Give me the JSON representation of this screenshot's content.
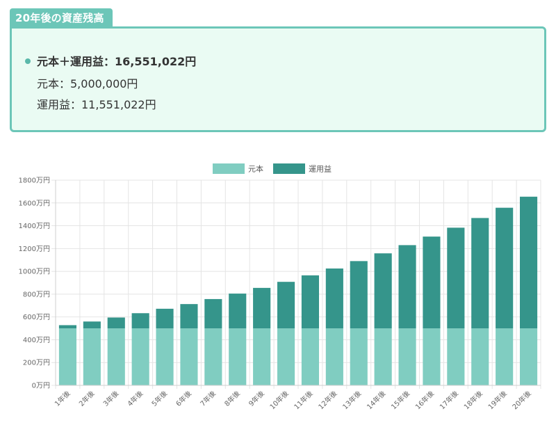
{
  "summary": {
    "title": "20年後の資産残高",
    "total": "元本＋運用益：16,551,022円",
    "principal": "元本：5,000,000円",
    "gain": "運用益：11,551,022円"
  },
  "colors": {
    "principal": "#80cdc1",
    "gain": "#35958b",
    "panel_border": "#6cc6b8",
    "panel_bg": "#eafbf3"
  },
  "chart_data": {
    "type": "bar",
    "stacked": true,
    "categories": [
      "1年後",
      "2年後",
      "3年後",
      "4年後",
      "5年後",
      "6年後",
      "7年後",
      "8年後",
      "9年後",
      "10年後",
      "11年後",
      "12年後",
      "13年後",
      "14年後",
      "15年後",
      "16年後",
      "17年後",
      "18年後",
      "19年後",
      "20年後"
    ],
    "series": [
      {
        "name": "元本",
        "values": [
          500,
          500,
          500,
          500,
          500,
          500,
          500,
          500,
          500,
          500,
          500,
          500,
          500,
          500,
          500,
          500,
          500,
          500,
          500,
          500
        ]
      },
      {
        "name": "運用益",
        "values": [
          28,
          60,
          95,
          133,
          172,
          213,
          257,
          305,
          355,
          408,
          465,
          525,
          590,
          658,
          730,
          805,
          883,
          968,
          1058,
          1155
        ]
      }
    ],
    "ylim": [
      0,
      1800
    ],
    "yticks": [
      "0万円",
      "200万円",
      "400万円",
      "600万円",
      "800万円",
      "1000万円",
      "1200万円",
      "1400万円",
      "1600万円",
      "1800万円"
    ],
    "ytick_values": [
      0,
      200,
      400,
      600,
      800,
      1000,
      1200,
      1400,
      1600,
      1800
    ],
    "legend_position": "top",
    "grid": true
  }
}
